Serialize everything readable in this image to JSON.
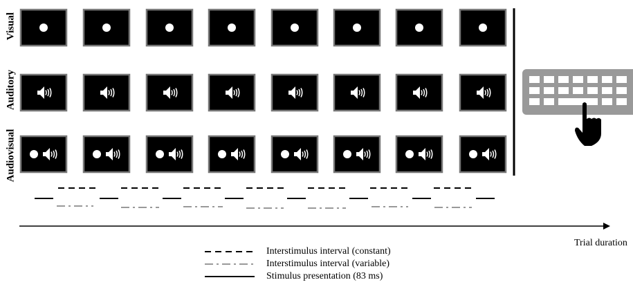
{
  "row_labels": [
    "Visual",
    "Auditory",
    "Audiovisual"
  ],
  "axis_label": "Trial duration",
  "legend": [
    "Interstimulus interval (constant)",
    "Interstimulus interval (variable)",
    "Stimulus presentation (83 ms)"
  ]
}
